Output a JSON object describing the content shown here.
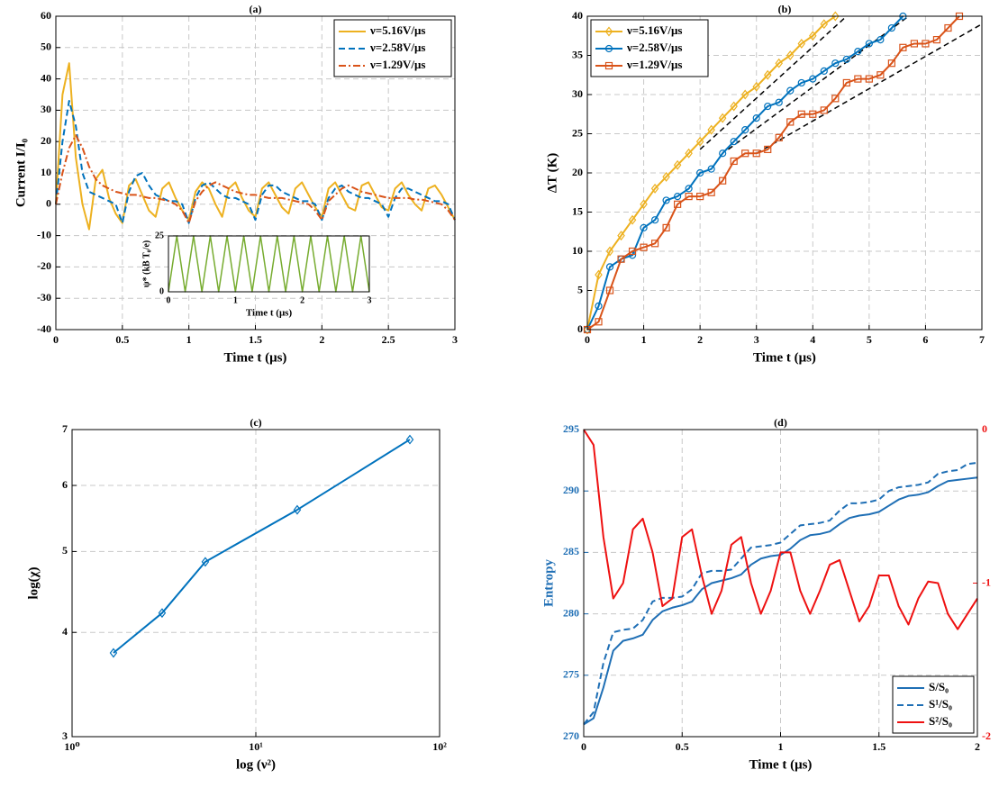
{
  "chart_data": [
    {
      "type": "line",
      "title": "(a)",
      "xlabel": "Time t (μs)",
      "ylabel": "Current I/I₀",
      "xlim": [
        0,
        3
      ],
      "xticks": [
        0,
        0.5,
        1,
        1.5,
        2,
        2.5,
        3
      ],
      "ylim": [
        -40,
        60
      ],
      "yticks": [
        -40,
        -30,
        -20,
        -10,
        0,
        10,
        20,
        30,
        40,
        50,
        60
      ],
      "grid": true,
      "legend": "upper right",
      "x": [
        0,
        0.05,
        0.1,
        0.15,
        0.2,
        0.25,
        0.3,
        0.35,
        0.4,
        0.45,
        0.5,
        0.55,
        0.6,
        0.65,
        0.7,
        0.75,
        0.8,
        0.85,
        0.9,
        0.95,
        1,
        1.05,
        1.1,
        1.15,
        1.2,
        1.25,
        1.3,
        1.35,
        1.4,
        1.45,
        1.5,
        1.55,
        1.6,
        1.65,
        1.7,
        1.75,
        1.8,
        1.85,
        1.9,
        1.95,
        2,
        2.05,
        2.1,
        2.15,
        2.2,
        2.25,
        2.3,
        2.35,
        2.4,
        2.45,
        2.5,
        2.55,
        2.6,
        2.65,
        2.7,
        2.75,
        2.8,
        2.85,
        2.9,
        2.95,
        3
      ],
      "series": [
        {
          "name": "ν=5.16V/μs",
          "color": "#edb120",
          "dash": "solid",
          "values": [
            0,
            35,
            45,
            15,
            0,
            -8,
            8,
            11,
            2,
            -3,
            -6,
            6,
            8,
            3,
            -2,
            -4,
            5,
            7,
            2,
            -2,
            -5,
            4,
            7,
            5,
            0,
            -4,
            5,
            7,
            2,
            -2,
            -4,
            5,
            7,
            3,
            -1,
            -3,
            5,
            7,
            3,
            -1,
            -4,
            5,
            7,
            3,
            -1,
            -2,
            6,
            7,
            3,
            -1,
            -2,
            5,
            7,
            3,
            0,
            -2,
            5,
            6,
            3,
            -1,
            -5
          ]
        },
        {
          "name": "ν=2.58V/μs",
          "color": "#0072bd",
          "dash": "dashed",
          "values": [
            0,
            20,
            33,
            25,
            10,
            4,
            3,
            2,
            1,
            0,
            -6,
            4,
            9,
            10,
            6,
            3,
            2,
            1,
            1,
            0,
            -6,
            2,
            6,
            7,
            5,
            3,
            2,
            2,
            1,
            0,
            -5,
            3,
            6,
            6,
            4,
            3,
            2,
            1,
            1,
            0,
            -5,
            2,
            5,
            6,
            4,
            3,
            2,
            2,
            1,
            0,
            -4,
            2,
            5,
            5,
            4,
            3,
            2,
            1,
            1,
            0,
            -5
          ]
        },
        {
          "name": "ν=1.29V/μs",
          "color": "#d95319",
          "dash": "dashdot",
          "values": [
            0,
            10,
            18,
            22,
            18,
            12,
            8,
            6,
            5,
            4,
            3.5,
            3,
            3,
            2.5,
            2,
            2,
            1.5,
            1,
            0,
            -2,
            -6,
            1,
            4,
            6,
            7,
            6,
            5,
            4,
            3.5,
            3,
            3,
            2.5,
            2,
            2,
            2,
            1.5,
            1,
            0.5,
            0,
            -2,
            -5,
            1,
            3,
            5,
            6,
            5,
            4,
            3.5,
            3,
            2.5,
            2,
            2,
            2,
            2,
            1.5,
            1.5,
            1,
            0.5,
            0,
            -2,
            -5
          ]
        }
      ]
    },
    {
      "type": "line",
      "xlabel": "Time t (μs)",
      "ylabel": "ψ* (kB T₀/e)",
      "xlim": [
        0,
        3
      ],
      "xticks": [
        0,
        1,
        2,
        3
      ],
      "ylim": [
        0,
        25
      ],
      "yticks": [
        0,
        25
      ],
      "grid": false,
      "x": [
        0,
        0.125,
        0.25,
        0.375,
        0.5,
        0.625,
        0.75,
        0.875,
        1,
        1.125,
        1.25,
        1.375,
        1.5,
        1.625,
        1.75,
        1.875,
        2,
        2.125,
        2.25,
        2.375,
        2.5,
        2.625,
        2.75,
        2.875,
        3
      ],
      "series": [
        {
          "color": "#77ac30",
          "dash": "solid",
          "values": [
            0,
            25,
            0,
            25,
            0,
            25,
            0,
            25,
            0,
            25,
            0,
            25,
            0,
            25,
            0,
            25,
            0,
            25,
            0,
            25,
            0,
            25,
            0,
            25,
            0
          ]
        }
      ]
    },
    {
      "type": "line",
      "title": "(b)",
      "xlabel": "Time t (μs)",
      "ylabel": "ΔT (K)",
      "xlim": [
        0,
        7
      ],
      "xticks": [
        0,
        1,
        2,
        3,
        4,
        5,
        6,
        7
      ],
      "ylim": [
        0,
        40
      ],
      "yticks": [
        0,
        5,
        10,
        15,
        20,
        25,
        30,
        35,
        40
      ],
      "grid": true,
      "legend": "upper left",
      "series": [
        {
          "name": "ν=5.16V/μs",
          "color": "#edb120",
          "dash": "solid",
          "marker": "diamond",
          "x": [
            0,
            0.2,
            0.4,
            0.6,
            0.8,
            1,
            1.2,
            1.4,
            1.6,
            1.8,
            2,
            2.2,
            2.4,
            2.6,
            2.8,
            3,
            3.2,
            3.4,
            3.6,
            3.8,
            4,
            4.2,
            4.4
          ],
          "values": [
            0,
            7,
            10,
            12,
            14,
            16,
            18,
            19.5,
            21,
            22.5,
            24,
            25.5,
            27,
            28.5,
            30,
            31,
            32.5,
            34,
            35,
            36.5,
            37.5,
            39,
            40
          ]
        },
        {
          "name": "ν=2.58V/μs",
          "color": "#0072bd",
          "dash": "solid",
          "marker": "circle",
          "x": [
            0,
            0.2,
            0.4,
            0.6,
            0.8,
            1,
            1.2,
            1.4,
            1.6,
            1.8,
            2,
            2.2,
            2.4,
            2.6,
            2.8,
            3,
            3.2,
            3.4,
            3.6,
            3.8,
            4,
            4.2,
            4.4,
            4.6,
            4.8,
            5,
            5.2,
            5.4,
            5.6
          ],
          "values": [
            0,
            3,
            8,
            9,
            9.5,
            13,
            14,
            16.5,
            17,
            18,
            20,
            20.5,
            22.5,
            24,
            25.5,
            27,
            28.5,
            29,
            30.5,
            31.5,
            32,
            33,
            34,
            34.5,
            35.5,
            36.5,
            37,
            38.5,
            40
          ]
        },
        {
          "name": "ν=1.29V/μs",
          "color": "#d95319",
          "dash": "solid",
          "marker": "square",
          "x": [
            0,
            0.2,
            0.4,
            0.6,
            0.8,
            1,
            1.2,
            1.4,
            1.6,
            1.8,
            2,
            2.2,
            2.4,
            2.6,
            2.8,
            3,
            3.2,
            3.4,
            3.6,
            3.8,
            4,
            4.2,
            4.4,
            4.6,
            4.8,
            5,
            5.2,
            5.4,
            5.6,
            5.8,
            6,
            6.2,
            6.4,
            6.6
          ],
          "values": [
            0,
            1,
            5,
            9,
            10,
            10.5,
            11,
            13,
            16,
            17,
            17,
            17.5,
            19,
            21.5,
            22.5,
            22.5,
            23,
            24.5,
            26.5,
            27.5,
            27.5,
            28,
            29.5,
            31.5,
            32,
            32,
            32.5,
            34,
            36,
            36.5,
            36.5,
            37,
            38.5,
            40
          ]
        }
      ],
      "fit_color": "#000000",
      "fit_lines": [
        {
          "x": [
            2,
            4.6
          ],
          "values": [
            23,
            40
          ]
        },
        {
          "x": [
            2.5,
            5.7
          ],
          "values": [
            23,
            40
          ]
        },
        {
          "x": [
            3,
            7
          ],
          "values": [
            22.5,
            39
          ]
        }
      ]
    },
    {
      "type": "line",
      "title": "(c)",
      "xlabel": "log (ν²)",
      "ylabel": "log(χ)",
      "xlog": true,
      "ylog": true,
      "xlim": [
        1,
        100
      ],
      "xticks": [
        {
          "value": 1,
          "label": "10⁰"
        },
        {
          "value": 10,
          "label": "10¹"
        },
        {
          "value": 100,
          "label": "10²"
        }
      ],
      "ylim": [
        3,
        7
      ],
      "yticks": [
        3,
        4,
        5,
        6,
        7
      ],
      "grid": true,
      "series": [
        {
          "color": "#0072bd",
          "dash": "solid",
          "marker": "diamond",
          "x": [
            1.68,
            3.09,
            5.31,
            16.8,
            68.9
          ],
          "values": [
            3.78,
            4.22,
            4.86,
            5.61,
            6.81
          ]
        }
      ]
    },
    {
      "type": "line",
      "title": "(d)",
      "xlabel": "Time t (μs)",
      "ylabel": "Entropy",
      "xlim": [
        0,
        2
      ],
      "xticks": [
        0,
        0.5,
        1,
        1.5,
        2
      ],
      "ylim": [
        270,
        295
      ],
      "yticks": [
        270,
        275,
        280,
        285,
        290,
        295
      ],
      "y2lim": [
        -2,
        0
      ],
      "y2ticks": [
        -2,
        -1,
        0
      ],
      "ycolor": "#1f6fb5",
      "y2color": "#ee1111",
      "grid": true,
      "legend": "lower right",
      "x": [
        0,
        0.05,
        0.1,
        0.15,
        0.2,
        0.25,
        0.3,
        0.35,
        0.4,
        0.45,
        0.5,
        0.55,
        0.6,
        0.65,
        0.7,
        0.75,
        0.8,
        0.85,
        0.9,
        0.95,
        1,
        1.05,
        1.1,
        1.15,
        1.2,
        1.25,
        1.3,
        1.35,
        1.4,
        1.45,
        1.5,
        1.55,
        1.6,
        1.65,
        1.7,
        1.75,
        1.8,
        1.85,
        1.9,
        1.95,
        2
      ],
      "series": [
        {
          "name": "S/S₀",
          "color": "#1f6fb5",
          "dash": "solid",
          "values": [
            271,
            271.5,
            274,
            277,
            277.8,
            278,
            278.3,
            279.5,
            280.2,
            280.5,
            280.7,
            281,
            282,
            282.5,
            282.7,
            282.9,
            283.2,
            284,
            284.5,
            284.7,
            284.8,
            285.3,
            286,
            286.4,
            286.5,
            286.7,
            287.3,
            287.8,
            288,
            288.1,
            288.3,
            288.8,
            289.3,
            289.6,
            289.7,
            289.9,
            290.4,
            290.8,
            290.9,
            291,
            291.1
          ]
        },
        {
          "name": "S¹/S₀",
          "color": "#1f6fb5",
          "dash": "dashed",
          "values": [
            271,
            272,
            276,
            278.5,
            278.7,
            278.8,
            279.5,
            281,
            281.3,
            281.3,
            281.4,
            282,
            283.3,
            283.5,
            283.5,
            283.6,
            284.5,
            285.4,
            285.5,
            285.6,
            285.8,
            286.5,
            287.2,
            287.3,
            287.4,
            287.6,
            288.4,
            289,
            289,
            289.1,
            289.3,
            290,
            290.3,
            290.4,
            290.5,
            290.7,
            291.4,
            291.6,
            291.7,
            292.2,
            292.3
          ]
        },
        {
          "name": "S²/S₀",
          "color": "#ee1111",
          "dash": "solid",
          "axis": "y2",
          "values": [
            0,
            -0.1,
            -0.7,
            -1.1,
            -1,
            -0.65,
            -0.58,
            -0.8,
            -1.15,
            -1.1,
            -0.7,
            -0.65,
            -0.95,
            -1.2,
            -1.05,
            -0.75,
            -0.7,
            -1,
            -1.2,
            -1.05,
            -0.8,
            -0.8,
            -1.05,
            -1.2,
            -1.05,
            -0.88,
            -0.85,
            -1.05,
            -1.25,
            -1.15,
            -0.95,
            -0.95,
            -1.15,
            -1.27,
            -1.1,
            -0.99,
            -1,
            -1.2,
            -1.3,
            -1.2,
            -1.1
          ]
        }
      ]
    }
  ]
}
